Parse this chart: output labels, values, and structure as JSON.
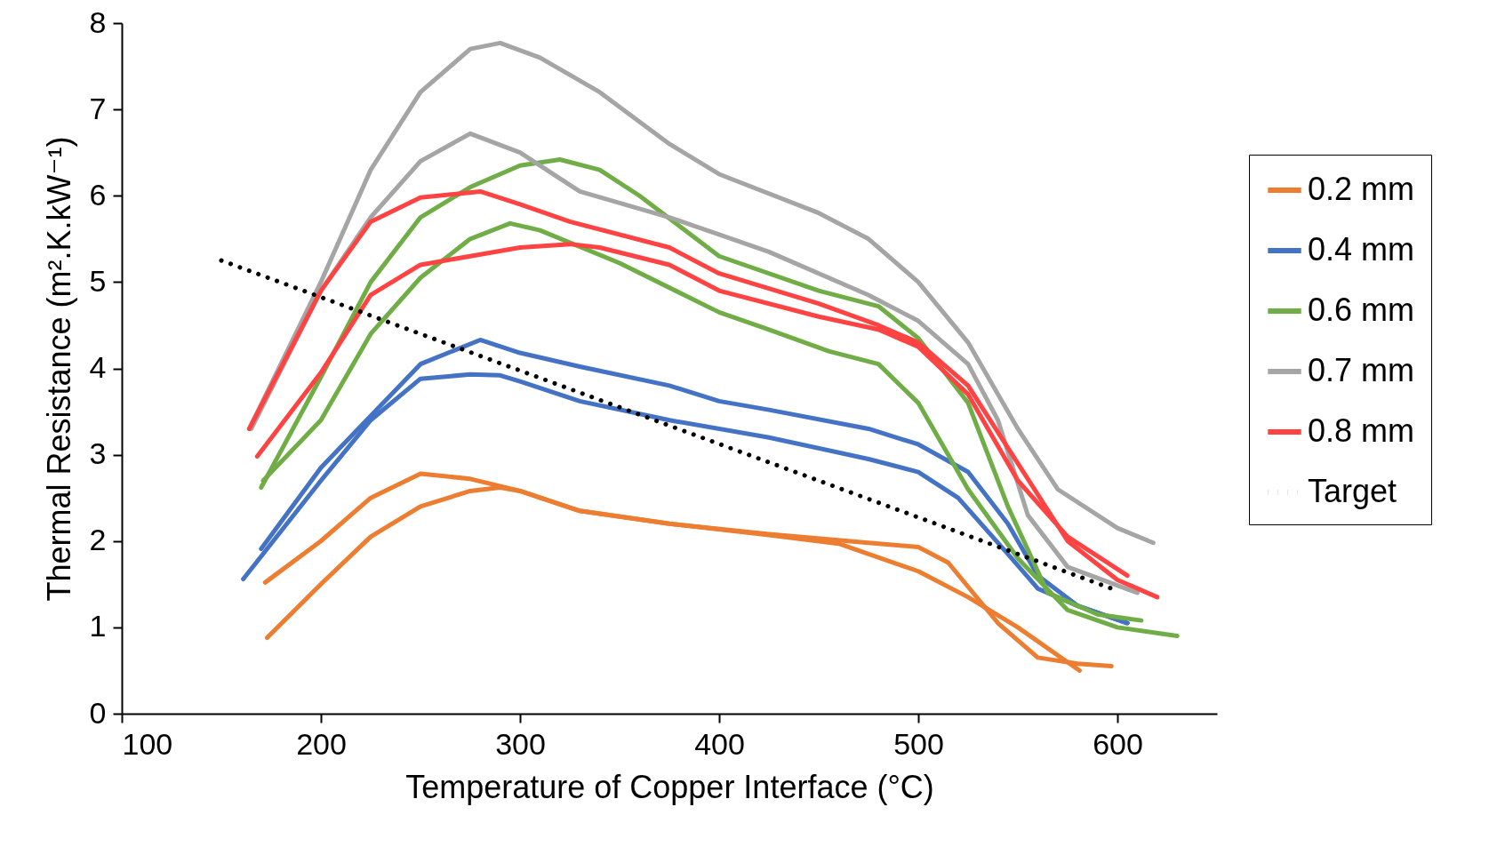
{
  "chart_data": {
    "type": "line",
    "xlabel": "Temperature of Copper Interface (°C)",
    "ylabel": "Thermal Resistance (m².K.kW⁻¹)",
    "xlim": [
      100,
      650
    ],
    "xticks": [
      100,
      200,
      300,
      400,
      500,
      600
    ],
    "ylim": [
      0,
      8
    ],
    "yticks": [
      0,
      1,
      2,
      3,
      4,
      5,
      6,
      7,
      8
    ],
    "grid": false,
    "legend": "right",
    "marker": "none",
    "series": [
      {
        "name": "0.2 mm",
        "color": "#ed7d31",
        "line_style": "solid",
        "x": [
          172,
          200,
          225,
          250,
          275,
          300,
          330,
          375,
          425,
          475,
          500,
          515,
          540,
          560,
          580,
          597
        ],
        "values": [
          1.52,
          2.0,
          2.5,
          2.78,
          2.72,
          2.58,
          2.35,
          2.2,
          2.08,
          1.98,
          1.93,
          1.75,
          1.05,
          0.65,
          0.58,
          0.55
        ]
      },
      {
        "color": "#ed7d31",
        "line_style": "solid",
        "x": [
          173,
          200,
          225,
          250,
          275,
          290,
          300,
          330,
          375,
          425,
          460,
          500,
          525,
          550,
          581
        ],
        "values": [
          0.88,
          1.5,
          2.05,
          2.4,
          2.58,
          2.62,
          2.58,
          2.35,
          2.2,
          2.07,
          1.97,
          1.65,
          1.35,
          1.0,
          0.5
        ]
      },
      {
        "name": "0.4 mm",
        "color": "#4472c4",
        "line_style": "solid",
        "x": [
          170,
          200,
          225,
          250,
          280,
          300,
          330,
          375,
          400,
          425,
          475,
          500,
          525,
          545,
          560,
          580,
          605
        ],
        "values": [
          1.91,
          2.85,
          3.45,
          4.05,
          4.33,
          4.18,
          4.02,
          3.8,
          3.62,
          3.52,
          3.3,
          3.12,
          2.8,
          2.2,
          1.6,
          1.25,
          1.05
        ]
      },
      {
        "color": "#4472c4",
        "line_style": "solid",
        "x": [
          161,
          200,
          225,
          250,
          275,
          290,
          300,
          330,
          375,
          425,
          475,
          500,
          520,
          545,
          560,
          580,
          605
        ],
        "values": [
          1.56,
          2.7,
          3.4,
          3.88,
          3.93,
          3.92,
          3.85,
          3.62,
          3.4,
          3.2,
          2.95,
          2.8,
          2.5,
          1.85,
          1.45,
          1.25,
          1.05
        ]
      },
      {
        "name": "0.6 mm",
        "color": "#70ad47",
        "line_style": "solid",
        "x": [
          170,
          200,
          225,
          250,
          275,
          300,
          320,
          340,
          360,
          400,
          450,
          480,
          500,
          525,
          545,
          565,
          590,
          612
        ],
        "values": [
          2.62,
          3.9,
          5.0,
          5.75,
          6.1,
          6.35,
          6.42,
          6.3,
          6.0,
          5.3,
          4.9,
          4.72,
          4.35,
          3.6,
          2.4,
          1.4,
          1.15,
          1.08
        ]
      },
      {
        "color": "#70ad47",
        "line_style": "solid",
        "x": [
          171,
          200,
          225,
          250,
          275,
          295,
          310,
          350,
          400,
          425,
          455,
          480,
          500,
          525,
          550,
          575,
          600,
          630
        ],
        "values": [
          2.7,
          3.4,
          4.4,
          5.05,
          5.5,
          5.68,
          5.6,
          5.22,
          4.65,
          4.45,
          4.2,
          4.05,
          3.6,
          2.6,
          1.8,
          1.2,
          1.0,
          0.9
        ]
      },
      {
        "name": "0.7 mm",
        "color": "#a5a5a5",
        "line_style": "solid",
        "x": [
          164,
          200,
          225,
          250,
          275,
          290,
          310,
          340,
          375,
          400,
          450,
          475,
          500,
          525,
          550,
          570,
          600,
          618
        ],
        "values": [
          3.3,
          5.0,
          6.3,
          7.2,
          7.7,
          7.77,
          7.6,
          7.2,
          6.6,
          6.25,
          5.8,
          5.5,
          5.0,
          4.3,
          3.3,
          2.6,
          2.15,
          1.98
        ]
      },
      {
        "color": "#a5a5a5",
        "line_style": "solid",
        "x": [
          165,
          200,
          225,
          250,
          275,
          300,
          330,
          375,
          400,
          425,
          475,
          500,
          525,
          540,
          555,
          575,
          610
        ],
        "values": [
          3.3,
          4.9,
          5.75,
          6.4,
          6.72,
          6.5,
          6.05,
          5.75,
          5.55,
          5.35,
          4.85,
          4.55,
          4.05,
          3.4,
          2.3,
          1.7,
          1.4
        ]
      },
      {
        "name": "0.8 mm",
        "color": "#ff4343",
        "line_style": "solid",
        "x": [
          164,
          200,
          225,
          250,
          280,
          300,
          325,
          375,
          400,
          450,
          480,
          500,
          525,
          550,
          575,
          600,
          620
        ],
        "values": [
          3.3,
          4.9,
          5.7,
          5.98,
          6.05,
          5.9,
          5.7,
          5.4,
          5.1,
          4.75,
          4.5,
          4.3,
          3.8,
          2.9,
          2.0,
          1.55,
          1.35
        ]
      },
      {
        "color": "#ff4343",
        "line_style": "solid",
        "x": [
          168,
          200,
          225,
          250,
          275,
          300,
          325,
          340,
          375,
          400,
          450,
          480,
          500,
          525,
          550,
          575,
          605
        ],
        "values": [
          2.98,
          3.95,
          4.85,
          5.2,
          5.3,
          5.4,
          5.44,
          5.4,
          5.2,
          4.9,
          4.6,
          4.45,
          4.25,
          3.7,
          2.7,
          2.05,
          1.6
        ]
      },
      {
        "name": "Target",
        "color": "#000000",
        "line_style": "dotted",
        "x": [
          150,
          597
        ],
        "values": [
          5.25,
          1.45
        ]
      }
    ]
  }
}
